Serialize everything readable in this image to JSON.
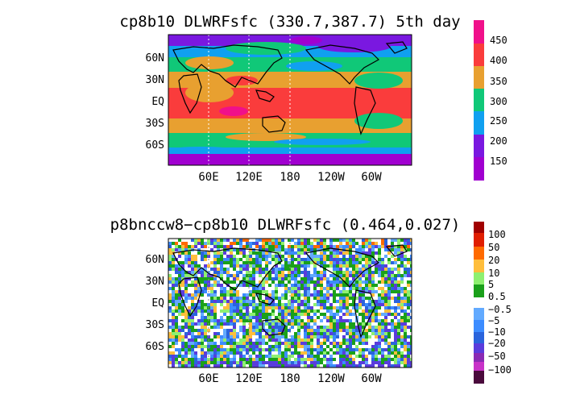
{
  "maps": [
    {
      "title": "cp8b10 DLWRFsfc (330.7,387.7) 5th day",
      "lat_labels": [
        "60N",
        "30N",
        "EQ",
        "30S",
        "60S"
      ],
      "lon_labels": [
        "60E",
        "120E",
        "180",
        "120W",
        "60W"
      ],
      "colorbar": {
        "labels": [
          "450",
          "400",
          "350",
          "300",
          "250",
          "200",
          "150"
        ],
        "colors": [
          "#f0108a",
          "#fa3c3c",
          "#e8a030",
          "#10c878",
          "#10a0f0",
          "#7a18e0",
          "#a000d0"
        ]
      }
    },
    {
      "title": "p8bnccw8−cp8b10 DLWRFsfc (0.464,0.027)",
      "lat_labels": [
        "60N",
        "30N",
        "EQ",
        "30S",
        "60S"
      ],
      "lon_labels": [
        "60E",
        "120E",
        "180",
        "120W",
        "60W"
      ],
      "colorbar": {
        "labels": [
          "100",
          "50",
          "20",
          "10",
          "5",
          "0.5",
          "−0.5",
          "−5",
          "−10",
          "−20",
          "−50",
          "−100"
        ],
        "colors_pos": [
          "#a00000",
          "#e01e00",
          "#ff6a00",
          "#ffbe3c",
          "#8ef070",
          "#1aa01a"
        ],
        "colors_neg": [
          "#62aaff",
          "#3c8cff",
          "#2a64dc",
          "#5a3cdc",
          "#8a2ab4",
          "#c832c8",
          "#4a0a3c"
        ]
      }
    }
  ]
}
